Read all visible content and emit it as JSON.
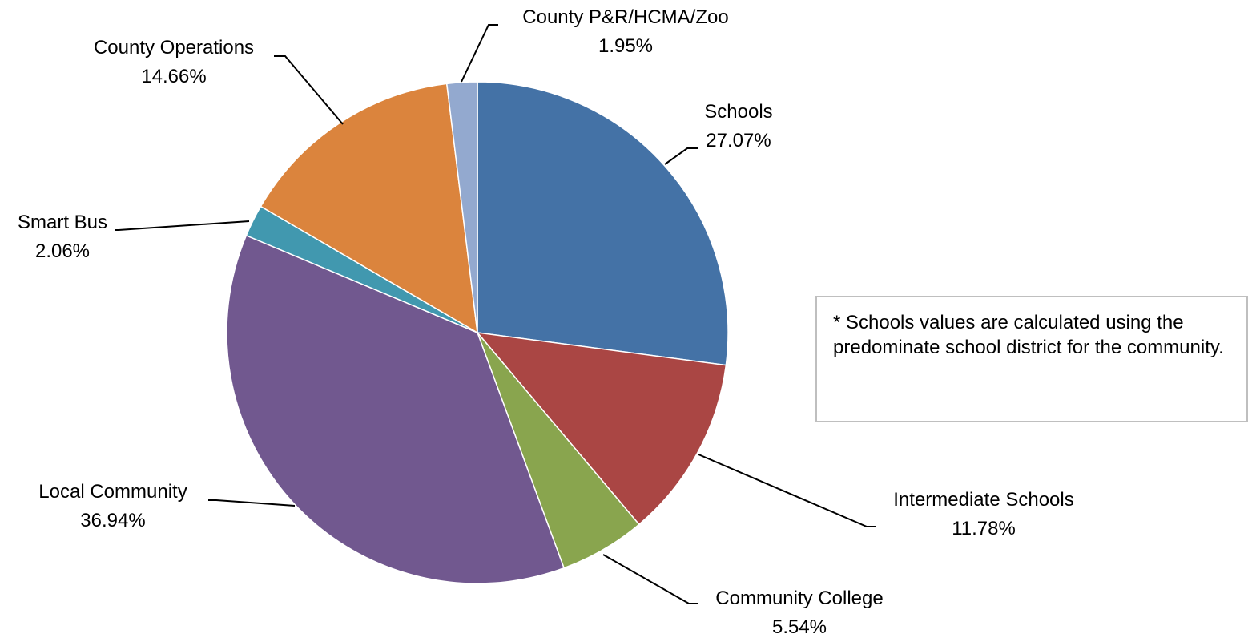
{
  "chart_data": {
    "type": "pie",
    "start_angle_deg": 0,
    "direction": "clockwise",
    "slices": [
      {
        "label": "Schools",
        "value": 27.07,
        "display": "27.07%",
        "color": "#4472A6"
      },
      {
        "label": "Intermediate Schools",
        "value": 11.78,
        "display": "11.78%",
        "color": "#AA4644"
      },
      {
        "label": "Community College",
        "value": 5.54,
        "display": "5.54%",
        "color": "#89A54E"
      },
      {
        "label": "Local Community",
        "value": 36.94,
        "display": "36.94%",
        "color": "#71588F"
      },
      {
        "label": "Smart Bus",
        "value": 2.06,
        "display": "2.06%",
        "color": "#4198AF"
      },
      {
        "label": "County Operations",
        "value": 14.66,
        "display": "14.66%",
        "color": "#DB843D"
      },
      {
        "label": "County P&R/HCMA/Zoo",
        "value": 1.95,
        "display": "1.95%",
        "color": "#93A9CF"
      }
    ]
  },
  "note": {
    "text": "* Schools values are calculated using the predominate school district for the community."
  }
}
